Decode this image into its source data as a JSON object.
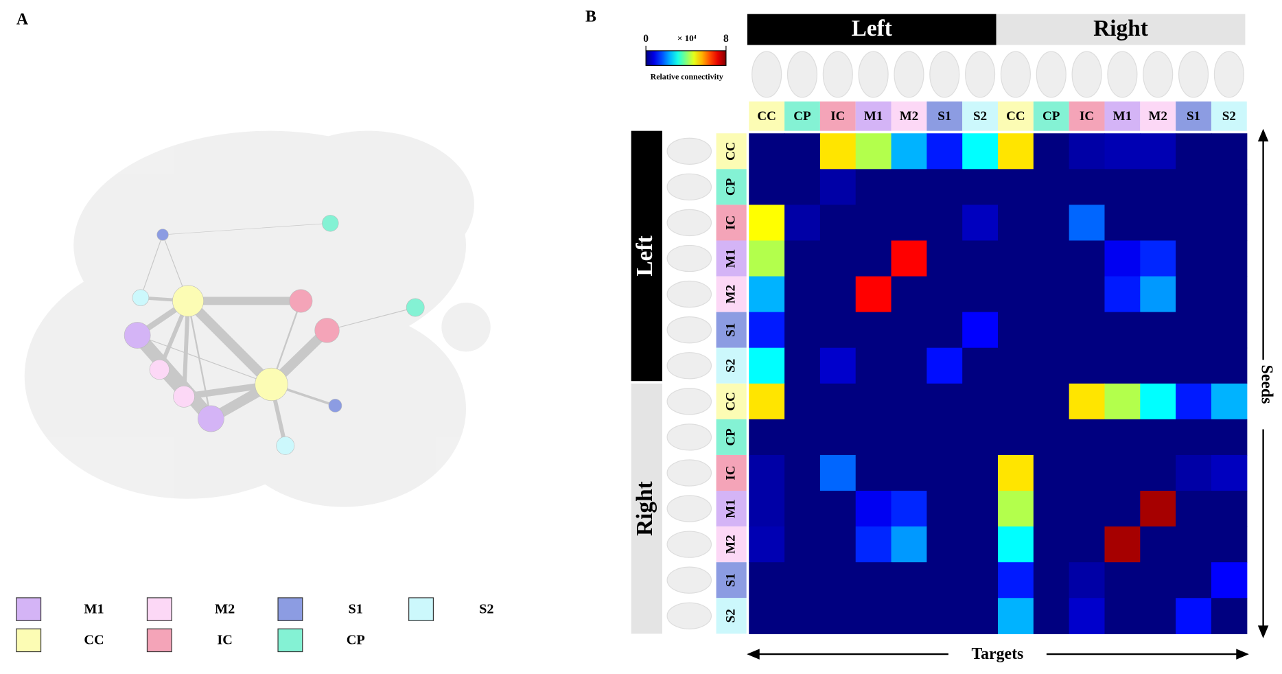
{
  "panel_a": {
    "label": "A",
    "legend": [
      {
        "name": "M1",
        "color": "#d4b4f6"
      },
      {
        "name": "M2",
        "color": "#fcd8f6"
      },
      {
        "name": "S1",
        "color": "#8c9ce2"
      },
      {
        "name": "S2",
        "color": "#ccf8fc"
      },
      {
        "name": "CC",
        "color": "#fcfcb4"
      },
      {
        "name": "IC",
        "color": "#f4a4b8"
      },
      {
        "name": "CP",
        "color": "#84f2d4"
      }
    ]
  },
  "chart_data": {
    "type": "heatmap",
    "panel_label": "B",
    "colorbar": {
      "clim": [
        0,
        8
      ],
      "ticks": [
        0,
        8
      ],
      "unit": "× 10⁴",
      "label": "Relative connectivity",
      "colormap": "jet"
    },
    "column_groups": [
      "Left",
      "Right"
    ],
    "row_groups": [
      "Left",
      "Right"
    ],
    "columns": [
      "CC",
      "CP",
      "IC",
      "M1",
      "M2",
      "S1",
      "S2",
      "CC",
      "CP",
      "IC",
      "M1",
      "M2",
      "S1",
      "S2"
    ],
    "rows": [
      "CC",
      "CP",
      "IC",
      "M1",
      "M2",
      "S1",
      "S2",
      "CC",
      "CP",
      "IC",
      "M1",
      "M2",
      "S1",
      "S2"
    ],
    "region_colors": {
      "CC": "#fcfcb4",
      "CP": "#84f2d4",
      "IC": "#f4a4b8",
      "M1": "#d4b4f6",
      "M2": "#fcd8f6",
      "S1": "#8c9ce2",
      "S2": "#ccf8fc"
    },
    "x_label": "Targets",
    "y_label": "Seeds",
    "values": [
      [
        0,
        0,
        5.2,
        4.4,
        2.4,
        1.2,
        3.0,
        5.2,
        0,
        0.3,
        0.4,
        0.4,
        0,
        0
      ],
      [
        0,
        0,
        0.3,
        0,
        0,
        0,
        0,
        0,
        0,
        0,
        0,
        0,
        0,
        0
      ],
      [
        5.0,
        0.3,
        0,
        0,
        0,
        0,
        0.5,
        0,
        0,
        1.8,
        0,
        0,
        0,
        0
      ],
      [
        4.4,
        0,
        0,
        0,
        7.0,
        0,
        0,
        0,
        0,
        0,
        0.9,
        1.3,
        0,
        0
      ],
      [
        2.4,
        0,
        0,
        7.0,
        0,
        0,
        0,
        0,
        0,
        0,
        1.2,
        2.2,
        0,
        0
      ],
      [
        1.2,
        0,
        0,
        0,
        0,
        0,
        1.0,
        0,
        0,
        0,
        0,
        0,
        0,
        0
      ],
      [
        3.0,
        0,
        0.6,
        0,
        0,
        1.1,
        0,
        0,
        0,
        0,
        0,
        0,
        0,
        0
      ],
      [
        5.2,
        0,
        0,
        0,
        0,
        0,
        0,
        0,
        0,
        5.2,
        4.4,
        3.0,
        1.2,
        2.4
      ],
      [
        0,
        0,
        0,
        0,
        0,
        0,
        0,
        0,
        0,
        0,
        0,
        0,
        0,
        0
      ],
      [
        0.3,
        0,
        1.8,
        0,
        0,
        0,
        0,
        5.2,
        0,
        0,
        0,
        0,
        0.3,
        0.5
      ],
      [
        0.3,
        0,
        0,
        0.9,
        1.3,
        0,
        0,
        4.4,
        0,
        0,
        0,
        7.7,
        0,
        0
      ],
      [
        0.4,
        0,
        0,
        1.3,
        2.2,
        0,
        0,
        3.0,
        0,
        0,
        7.7,
        0,
        0,
        0
      ],
      [
        0,
        0,
        0,
        0,
        0,
        0,
        0,
        1.2,
        0,
        0.3,
        0,
        0,
        0,
        1.0
      ],
      [
        0,
        0,
        0,
        0,
        0,
        0,
        0,
        2.4,
        0,
        0.6,
        0,
        0,
        1.1,
        0
      ]
    ]
  }
}
